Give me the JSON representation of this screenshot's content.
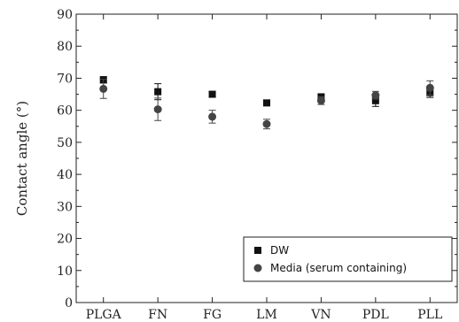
{
  "chart_data": {
    "type": "scatter",
    "categories": [
      "PLGA",
      "FN",
      "FG",
      "LM",
      "VN",
      "PDL",
      "PLL"
    ],
    "ylabel": "Contact angle (°)",
    "xlabel": "",
    "ylim": [
      0,
      90
    ],
    "yticks": [
      0,
      10,
      20,
      30,
      40,
      50,
      60,
      70,
      80,
      90
    ],
    "legend_position": "bottom-right",
    "series": [
      {
        "name": "DW",
        "marker": "square",
        "color": "#111111",
        "values": [
          69.5,
          65.8,
          65.0,
          62.3,
          64.2,
          63.0,
          65.5
        ],
        "errors": [
          1.0,
          2.5,
          0.8,
          0.6,
          0.8,
          1.8,
          1.5
        ]
      },
      {
        "name": "Media (serum containing)",
        "marker": "circle",
        "color": "#444444",
        "values": [
          66.7,
          60.3,
          58.0,
          55.7,
          63.0,
          64.7,
          67.0
        ],
        "errors": [
          3.0,
          3.5,
          2.0,
          1.5,
          1.2,
          1.2,
          2.2
        ]
      }
    ]
  }
}
